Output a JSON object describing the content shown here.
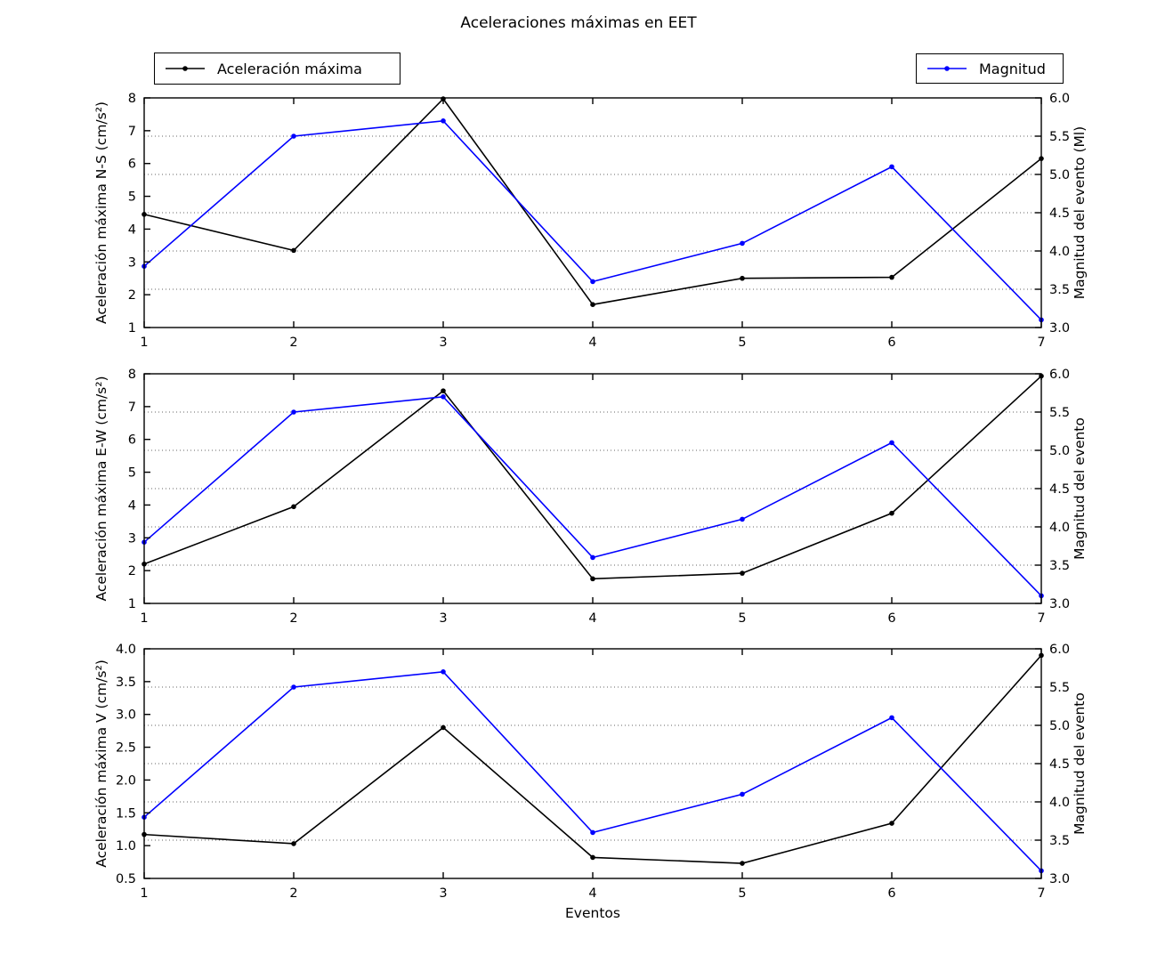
{
  "figure": {
    "title": "Aceleraciones máximas en EET",
    "xlabel": "Eventos",
    "background_color": "#ffffff",
    "grid_color": "#666666",
    "spine_color": "#000000"
  },
  "legends": [
    {
      "label": "Aceleración máxima",
      "color": "#000000"
    },
    {
      "label": "Magnitud",
      "color": "#0000ff"
    }
  ],
  "chart_data": [
    {
      "type": "line",
      "id": "ns",
      "x": [
        1,
        2,
        3,
        4,
        5,
        6,
        7
      ],
      "x_tick_labels": [
        "1",
        "2",
        "3",
        "4",
        "5",
        "6",
        "7"
      ],
      "left_axis": {
        "label": "Aceleración máxima N-S (cm/s²)",
        "lim": [
          1,
          8
        ],
        "ticks": [
          1,
          2,
          3,
          4,
          5,
          6,
          7,
          8
        ],
        "tick_labels": [
          "1",
          "2",
          "3",
          "4",
          "5",
          "6",
          "7",
          "8"
        ]
      },
      "right_axis": {
        "label": "Magnitud del evento (Ml)",
        "lim": [
          3.0,
          6.0
        ],
        "ticks": [
          3.0,
          3.5,
          4.0,
          4.5,
          5.0,
          5.5,
          6.0
        ],
        "tick_labels": [
          "3.0",
          "3.5",
          "4.0",
          "4.5",
          "5.0",
          "5.5",
          "6.0"
        ]
      },
      "grid": {
        "style": "dotted",
        "horizontal_at_right_values": [
          3.5,
          4.0,
          4.5,
          5.0,
          5.5
        ]
      },
      "series": [
        {
          "name": "Aceleración máxima",
          "axis": "left",
          "color": "#000000",
          "values": [
            4.45,
            3.35,
            7.97,
            1.7,
            2.5,
            2.53,
            6.15
          ]
        },
        {
          "name": "Magnitud",
          "axis": "right",
          "color": "#0000ff",
          "values": [
            3.8,
            5.5,
            5.7,
            3.6,
            4.1,
            5.1,
            3.1
          ]
        }
      ]
    },
    {
      "type": "line",
      "id": "ew",
      "x": [
        1,
        2,
        3,
        4,
        5,
        6,
        7
      ],
      "x_tick_labels": [
        "1",
        "2",
        "3",
        "4",
        "5",
        "6",
        "7"
      ],
      "left_axis": {
        "label": "Aceleración máxima E-W (cm/s²)",
        "lim": [
          1,
          8
        ],
        "ticks": [
          1,
          2,
          3,
          4,
          5,
          6,
          7,
          8
        ],
        "tick_labels": [
          "1",
          "2",
          "3",
          "4",
          "5",
          "6",
          "7",
          "8"
        ]
      },
      "right_axis": {
        "label": "Magnitud del evento",
        "lim": [
          3.0,
          6.0
        ],
        "ticks": [
          3.0,
          3.5,
          4.0,
          4.5,
          5.0,
          5.5,
          6.0
        ],
        "tick_labels": [
          "3.0",
          "3.5",
          "4.0",
          "4.5",
          "5.0",
          "5.5",
          "6.0"
        ]
      },
      "grid": {
        "style": "dotted",
        "horizontal_at_right_values": [
          3.5,
          4.0,
          4.5,
          5.0,
          5.5
        ]
      },
      "series": [
        {
          "name": "Aceleración máxima",
          "axis": "left",
          "color": "#000000",
          "values": [
            2.2,
            3.95,
            7.48,
            1.75,
            1.92,
            3.75,
            7.93
          ]
        },
        {
          "name": "Magnitud",
          "axis": "right",
          "color": "#0000ff",
          "values": [
            3.8,
            5.5,
            5.7,
            3.6,
            4.1,
            5.1,
            3.1
          ]
        }
      ]
    },
    {
      "type": "line",
      "id": "v",
      "x": [
        1,
        2,
        3,
        4,
        5,
        6,
        7
      ],
      "x_tick_labels": [
        "1",
        "2",
        "3",
        "4",
        "5",
        "6",
        "7"
      ],
      "left_axis": {
        "label": "Aceleración máxima V (cm/s²)",
        "lim": [
          0.5,
          4.0
        ],
        "ticks": [
          0.5,
          1.0,
          1.5,
          2.0,
          2.5,
          3.0,
          3.5,
          4.0
        ],
        "tick_labels": [
          "0.5",
          "1.0",
          "1.5",
          "2.0",
          "2.5",
          "3.0",
          "3.5",
          "4.0"
        ]
      },
      "right_axis": {
        "label": "Magnitud del evento",
        "lim": [
          3.0,
          6.0
        ],
        "ticks": [
          3.0,
          3.5,
          4.0,
          4.5,
          5.0,
          5.5,
          6.0
        ],
        "tick_labels": [
          "3.0",
          "3.5",
          "4.0",
          "4.5",
          "5.0",
          "5.5",
          "6.0"
        ]
      },
      "grid": {
        "style": "dotted",
        "horizontal_at_right_values": [
          3.5,
          4.0,
          4.5,
          5.0,
          5.5
        ]
      },
      "series": [
        {
          "name": "Aceleración máxima",
          "axis": "left",
          "color": "#000000",
          "values": [
            1.17,
            1.03,
            2.8,
            0.82,
            0.73,
            1.34,
            3.9
          ]
        },
        {
          "name": "Magnitud",
          "axis": "right",
          "color": "#0000ff",
          "values": [
            3.8,
            5.5,
            5.7,
            3.6,
            4.1,
            5.1,
            3.1
          ]
        }
      ]
    }
  ]
}
